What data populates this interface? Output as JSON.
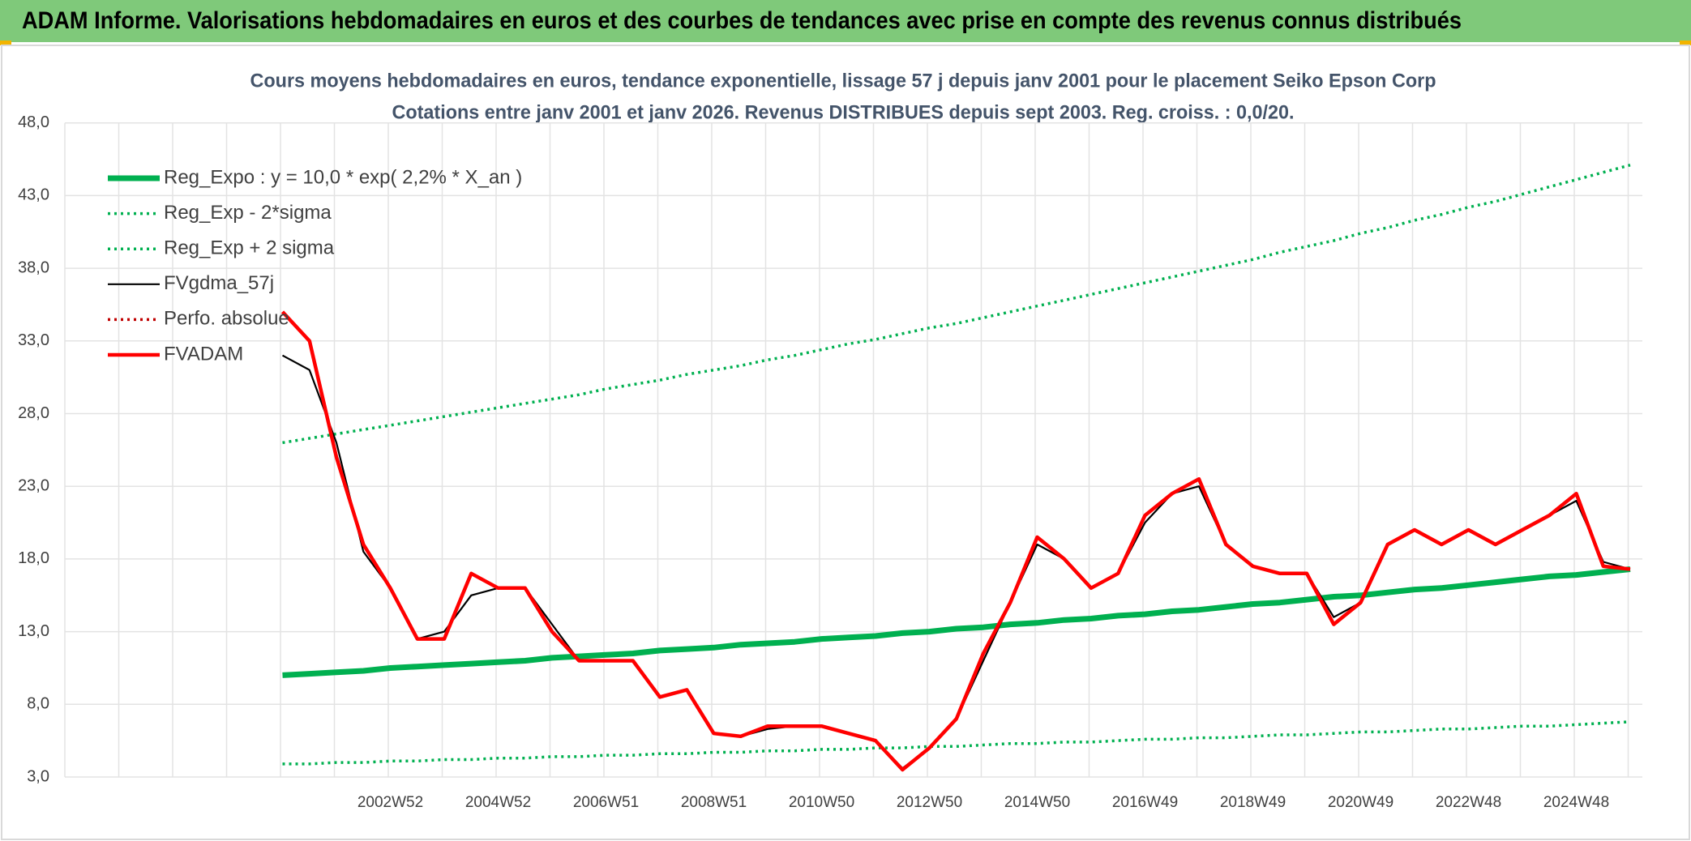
{
  "header": {
    "title": "ADAM Informe. Valorisations hebdomadaires en euros et des courbes de tendances avec prise en compte des revenus connus distribués"
  },
  "chart_data": {
    "type": "line",
    "title": "Cours moyens hebdomadaires en euros, tendance exponentielle, lissage 57 j depuis janv 2001 pour le placement Seiko Epson Corp",
    "subtitle": "Cotations entre janv 2001 et janv 2026. Revenus DISTRIBUES depuis sept 2003. Reg. croiss. : 0,0/20.",
    "categories": [
      null,
      null,
      null,
      null,
      null,
      null,
      null,
      null,
      null,
      null,
      null,
      null,
      "2002W52",
      null,
      null,
      null,
      "2004W52",
      null,
      null,
      null,
      "2006W51",
      null,
      null,
      null,
      "2008W51",
      null,
      null,
      null,
      "2010W50",
      null,
      null,
      null,
      "2012W50",
      null,
      null,
      null,
      "2014W50",
      null,
      null,
      null,
      "2016W49",
      null,
      null,
      null,
      "2018W49",
      null,
      null,
      null,
      "2020W49",
      null,
      null,
      null,
      "2022W48",
      null,
      null,
      null,
      "2024W48",
      null,
      null
    ],
    "ylim": [
      3,
      48
    ],
    "yticks": [
      {
        "value": 3,
        "label": "3,0"
      },
      {
        "value": 8,
        "label": "8,0"
      },
      {
        "value": 13,
        "label": "13,0"
      },
      {
        "value": 18,
        "label": "18,0"
      },
      {
        "value": 23,
        "label": "23,0"
      },
      {
        "value": 28,
        "label": "28,0"
      },
      {
        "value": 33,
        "label": "33,0"
      },
      {
        "value": 38,
        "label": "38,0"
      },
      {
        "value": 43,
        "label": "43,0"
      },
      {
        "value": 48,
        "label": "48,0"
      }
    ],
    "grid": true,
    "legend": "left",
    "series": [
      {
        "name": "Reg_Expo : y = 10,0 * exp( 2,2% *  X_an )",
        "color": "#00b050",
        "style": "solid",
        "values": [
          null,
          null,
          null,
          null,
          null,
          null,
          null,
          null,
          10.0,
          10.1,
          10.2,
          10.3,
          10.5,
          10.6,
          10.7,
          10.8,
          10.9,
          11.0,
          11.2,
          11.3,
          11.4,
          11.5,
          11.7,
          11.8,
          11.9,
          12.1,
          12.2,
          12.3,
          12.5,
          12.6,
          12.7,
          12.9,
          13.0,
          13.2,
          13.3,
          13.5,
          13.6,
          13.8,
          13.9,
          14.1,
          14.2,
          14.4,
          14.5,
          14.7,
          14.9,
          15.0,
          15.2,
          15.4,
          15.5,
          15.7,
          15.9,
          16.0,
          16.2,
          16.4,
          16.6,
          16.8,
          16.9,
          17.1,
          17.3
        ]
      },
      {
        "name": "Reg_Exp - 2*sigma",
        "color": "#00b050",
        "style": "dotted",
        "values": [
          null,
          null,
          null,
          null,
          null,
          null,
          null,
          null,
          3.9,
          3.9,
          4.0,
          4.0,
          4.1,
          4.1,
          4.2,
          4.2,
          4.3,
          4.3,
          4.4,
          4.4,
          4.5,
          4.5,
          4.6,
          4.6,
          4.7,
          4.7,
          4.8,
          4.8,
          4.9,
          4.9,
          5.0,
          5.0,
          5.1,
          5.1,
          5.2,
          5.3,
          5.3,
          5.4,
          5.4,
          5.5,
          5.6,
          5.6,
          5.7,
          5.7,
          5.8,
          5.9,
          5.9,
          6.0,
          6.1,
          6.1,
          6.2,
          6.3,
          6.3,
          6.4,
          6.5,
          6.5,
          6.6,
          6.7,
          6.8
        ]
      },
      {
        "name": "Reg_Exp + 2 sigma",
        "color": "#00b050",
        "style": "dotted",
        "values": [
          null,
          null,
          null,
          null,
          null,
          null,
          null,
          null,
          26.0,
          26.3,
          26.6,
          26.9,
          27.2,
          27.5,
          27.8,
          28.1,
          28.4,
          28.7,
          29.0,
          29.3,
          29.7,
          30.0,
          30.3,
          30.7,
          31.0,
          31.3,
          31.7,
          32.0,
          32.4,
          32.8,
          33.1,
          33.5,
          33.9,
          34.2,
          34.6,
          35.0,
          35.4,
          35.8,
          36.2,
          36.6,
          37.0,
          37.4,
          37.8,
          38.2,
          38.6,
          39.1,
          39.5,
          39.9,
          40.4,
          40.8,
          41.3,
          41.7,
          42.2,
          42.6,
          43.1,
          43.6,
          44.1,
          44.6,
          45.1
        ]
      },
      {
        "name": "FVgdma_57j",
        "color": "#000000",
        "style": "thin",
        "values": [
          null,
          null,
          null,
          null,
          null,
          null,
          null,
          null,
          32,
          31,
          26,
          18.5,
          16,
          12.5,
          13,
          15.5,
          16,
          16,
          13.5,
          11,
          11,
          11,
          8.5,
          9,
          6,
          5.8,
          6.3,
          6.5,
          6.5,
          6,
          5.5,
          3.6,
          5,
          7,
          11,
          15,
          19,
          18,
          16,
          17,
          20.5,
          22.5,
          23,
          19,
          17.5,
          17,
          17,
          14,
          15,
          19,
          20,
          19,
          20,
          19,
          20,
          21,
          22,
          17.8,
          17.3
        ]
      },
      {
        "name": "Perfo. absolue",
        "color": "#c00000",
        "style": "dotted",
        "values": [
          null,
          null,
          null,
          null,
          null,
          null,
          null,
          null,
          null,
          null,
          null,
          null,
          null,
          null,
          null,
          null,
          null,
          null,
          null,
          null,
          null,
          null,
          null,
          null,
          null,
          null,
          null,
          null,
          null,
          null,
          null,
          null,
          null,
          null,
          null,
          null,
          null,
          null,
          null,
          null,
          null,
          null,
          null,
          null,
          null,
          null,
          null,
          null,
          null,
          null,
          null,
          null,
          null,
          null,
          null,
          null,
          null,
          null,
          null
        ]
      },
      {
        "name": "FVADAM",
        "color": "#ff0000",
        "style": "thick",
        "values": [
          null,
          null,
          null,
          null,
          null,
          null,
          null,
          null,
          35,
          33,
          25,
          19,
          16,
          12.5,
          12.5,
          17,
          16,
          16,
          13,
          11,
          11,
          11,
          8.5,
          9,
          6,
          5.8,
          6.5,
          6.5,
          6.5,
          6,
          5.5,
          3.5,
          5,
          7,
          11.5,
          15,
          19.5,
          18,
          16,
          17,
          21,
          22.5,
          23.5,
          19,
          17.5,
          17,
          17,
          13.5,
          15,
          19,
          20,
          19,
          20,
          19,
          20,
          21,
          22.5,
          17.5,
          17.3
        ]
      }
    ]
  }
}
